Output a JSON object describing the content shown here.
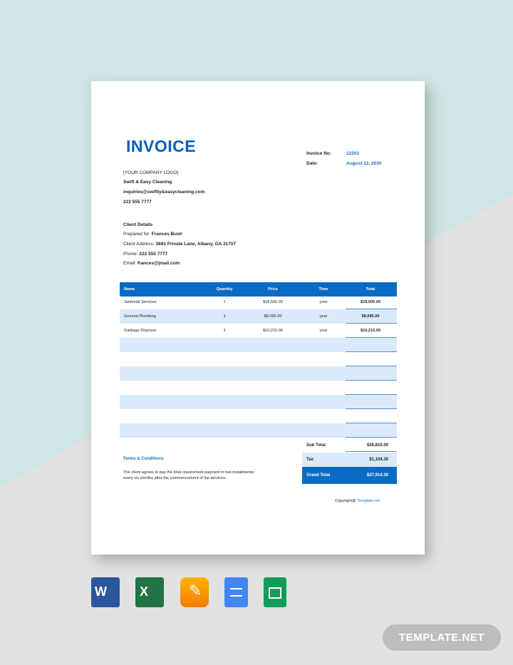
{
  "invoice": {
    "title": "INVOICE",
    "invoice_no_label": "Invoice No:",
    "invoice_no": "12203",
    "date_label": "Date:",
    "date": "August 12, 2030"
  },
  "company": {
    "logo": "[YOUR COMPANY LOGO]",
    "name": "Swift & Easy Cleaning",
    "email": "inquiries@swiftly&easycleaning.com",
    "phone": "222 555 7777"
  },
  "client": {
    "heading": "Client Details",
    "prepared_label": "Prepared for:",
    "prepared": "Frances Bush",
    "address_label": "Client Address:",
    "address": "3691 Private Lane, Albany, GA 31707",
    "phone_label": "Phone:",
    "phone": "222 555 7777",
    "email_label": "Email:",
    "email": "frances@jmail.com"
  },
  "table": {
    "headers": [
      "Name",
      "Quantity",
      "Price",
      "Time",
      "Total"
    ],
    "rows": [
      [
        "Janitorial Services",
        "1",
        "$18,500.00",
        "year",
        "$18,500.00"
      ],
      [
        "General Plumbing",
        "1",
        "$8,095.00",
        "year",
        "$8,095.00"
      ],
      [
        "Garbage Disposal",
        "1",
        "$10,215.00",
        "year",
        "$10,215.00"
      ]
    ]
  },
  "totals": {
    "sub_label": "Sub Total",
    "sub": "$36,810.00",
    "tax_label": "Tax",
    "tax": "$1,104.30",
    "grand_label": "Grand Total",
    "grand": "$37,914.30"
  },
  "terms": {
    "heading": "Terms & Conditions",
    "text": "The client agrees to pay the total requirement payment in two installments: every six months after the commencement of the services."
  },
  "footer": {
    "copyright": "Copyright@",
    "link": "Template.net"
  },
  "formats": [
    "word-icon",
    "excel-icon",
    "pages-icon",
    "google-docs-icon",
    "google-sheets-icon"
  ],
  "badge": "TEMPLATE.NET"
}
